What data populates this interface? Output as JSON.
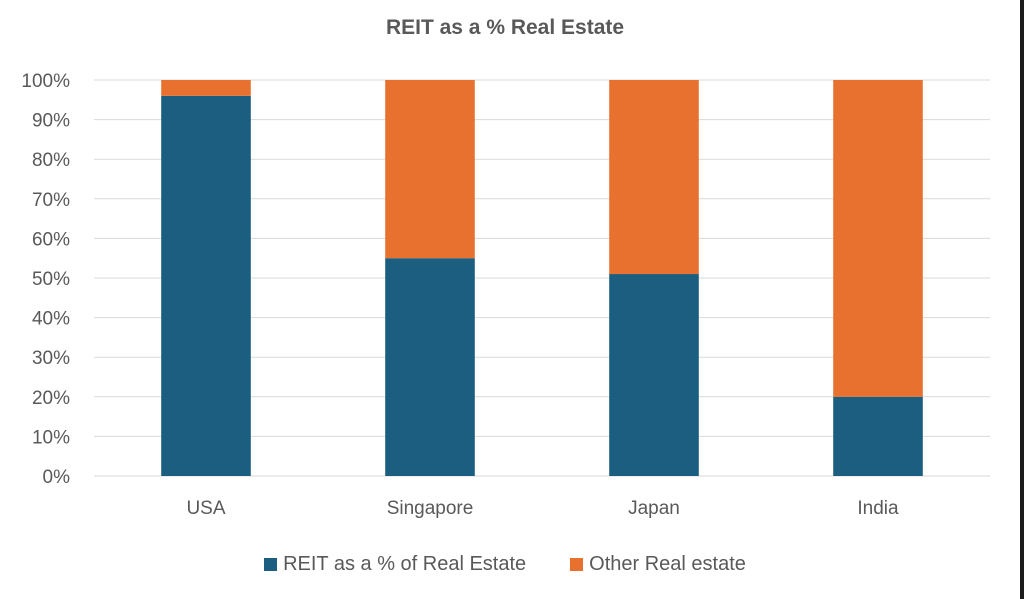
{
  "chart_data": {
    "type": "bar",
    "stacked": true,
    "title": "REIT as a % Real Estate",
    "categories": [
      "USA",
      "Singapore",
      "Japan",
      "India"
    ],
    "series": [
      {
        "name": "REIT as a % of Real Estate",
        "color": "#1b5e80",
        "values": [
          96,
          55,
          51,
          20
        ]
      },
      {
        "name": "Other Real estate",
        "color": "#e8712f",
        "values": [
          4,
          45,
          49,
          80
        ]
      }
    ],
    "ylim": [
      0,
      100
    ],
    "yticks": [
      "0%",
      "10%",
      "20%",
      "30%",
      "40%",
      "50%",
      "60%",
      "70%",
      "80%",
      "90%",
      "100%"
    ],
    "grid": true,
    "legend_position": "bottom",
    "xlabel": "",
    "ylabel": ""
  }
}
